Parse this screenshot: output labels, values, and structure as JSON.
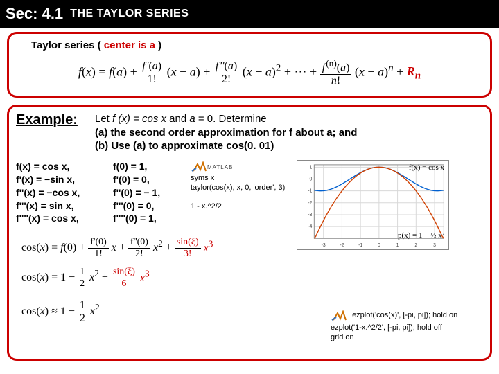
{
  "header": {
    "sec": "Sec: 4.1",
    "title": "THE TAYLOR SERIES"
  },
  "subtitle_pre": "Taylor series  ( ",
  "subtitle_highlight": "center is a",
  "subtitle_post": " )",
  "example": {
    "label": "Example:",
    "line1_a": "Let ",
    "line1_b": "f (x) = cos x",
    "line1_c": " and ",
    "line1_d": "a",
    "line1_e": " = 0. Determine",
    "line2": "(a) the second order approximation for f about a; and",
    "line3": "(b) Use (a) to approximate cos(0. 01)"
  },
  "derivs": {
    "d0": "f(x) = cos x,",
    "d1": "f'(x) = −sin x,",
    "d2": "f''(x) = −cos x,",
    "d3": "f'''(x) = sin x,",
    "d4": "f''''(x) = cos x,"
  },
  "vals": {
    "v0": "f(0) = 1,",
    "v1": "f'(0) = 0,",
    "v2": "f''(0) = − 1,",
    "v3": "f'''(0) = 0,",
    "v4": "f''''(0) = 1,"
  },
  "matlab1": {
    "l1": "syms x",
    "l2": "taylor(cos(x), x, 0, 'order', 3)",
    "l3": "1 - x.^2/2"
  },
  "chart": {
    "title_tr": "f(x) = cos x",
    "title_br": "p(x) = 1 − ½ x²",
    "xlim": [
      -3.5,
      3.5
    ],
    "ylim": [
      -5,
      1.2
    ],
    "xticks": [
      -3,
      -2,
      -1,
      0,
      1,
      2,
      3
    ],
    "yticks": [
      -4,
      -3,
      -2,
      -1,
      0,
      1
    ],
    "cos_color": "#0060d0",
    "parab_color": "#d04000",
    "grid_color": "#d8d8d8",
    "bg": "#ffffff"
  },
  "matlab2": {
    "l1": "ezplot('cos(x)', [-pi, pi]); hold on",
    "l2": "ezplot('1-x.^2/2', [-pi, pi]); hold off",
    "l3": "grid on"
  }
}
